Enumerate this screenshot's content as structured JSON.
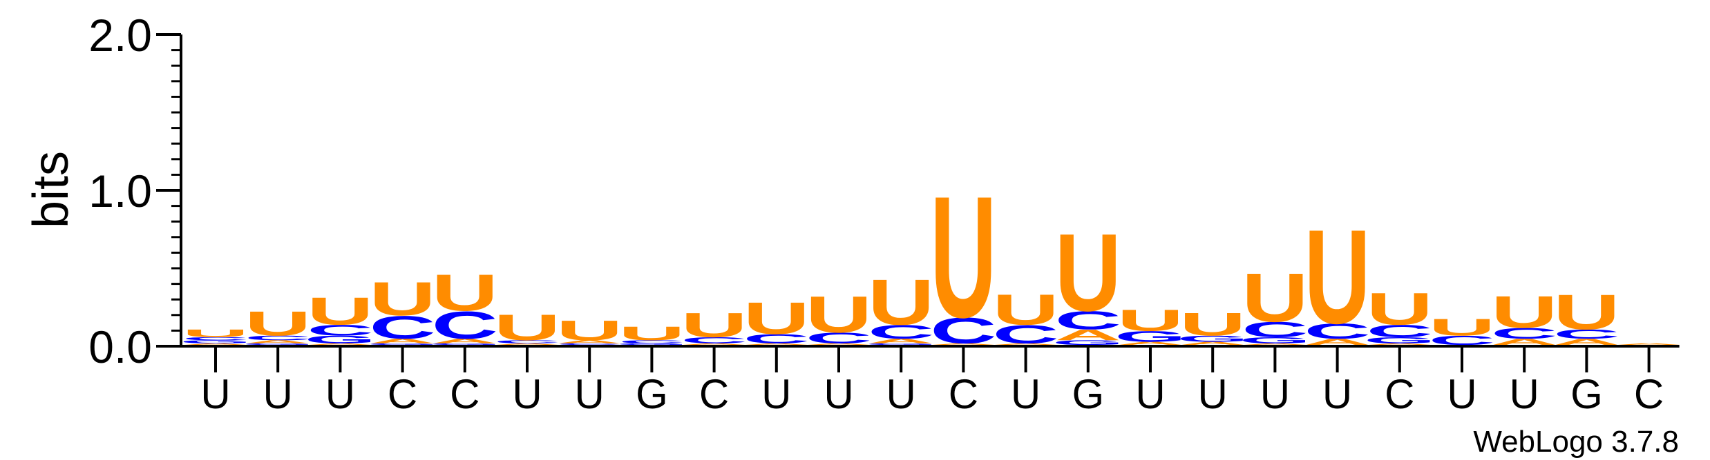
{
  "chart_data": {
    "type": "sequence_logo",
    "ylabel": "bits",
    "ylim": [
      0,
      2.0
    ],
    "yticks": [
      {
        "value": 0.0,
        "label": "0.0"
      },
      {
        "value": 1.0,
        "label": "1.0"
      },
      {
        "value": 2.0,
        "label": "2.0"
      }
    ],
    "xlabels": [
      "U",
      "U",
      "U",
      "C",
      "C",
      "U",
      "U",
      "G",
      "C",
      "U",
      "U",
      "U",
      "C",
      "U",
      "G",
      "U",
      "U",
      "U",
      "U",
      "C",
      "U",
      "U",
      "G",
      "C"
    ],
    "colors": {
      "U": "#ff8c00",
      "C": "#0000ff",
      "G": "#0000ff",
      "A": "#ff8c00"
    },
    "columns": [
      [
        {
          "b": "A",
          "h": 0.01
        },
        {
          "b": "G",
          "h": 0.02
        },
        {
          "b": "C",
          "h": 0.02
        },
        {
          "b": "U",
          "h": 0.05
        }
      ],
      [
        {
          "b": "G",
          "h": 0.01
        },
        {
          "b": "A",
          "h": 0.02
        },
        {
          "b": "C",
          "h": 0.03
        },
        {
          "b": "U",
          "h": 0.16
        }
      ],
      [
        {
          "b": "A",
          "h": 0.01
        },
        {
          "b": "G",
          "h": 0.05
        },
        {
          "b": "C",
          "h": 0.07
        },
        {
          "b": "U",
          "h": 0.18
        }
      ],
      [
        {
          "b": "G",
          "h": 0.01
        },
        {
          "b": "A",
          "h": 0.03
        },
        {
          "b": "C",
          "h": 0.15
        },
        {
          "b": "U",
          "h": 0.22
        }
      ],
      [
        {
          "b": "G",
          "h": 0.01
        },
        {
          "b": "A",
          "h": 0.03
        },
        {
          "b": "C",
          "h": 0.18
        },
        {
          "b": "U",
          "h": 0.24
        }
      ],
      [
        {
          "b": "A",
          "h": 0.01
        },
        {
          "b": "C",
          "h": 0.02
        },
        {
          "b": "U",
          "h": 0.17
        }
      ],
      [
        {
          "b": "C",
          "h": 0.01
        },
        {
          "b": "A",
          "h": 0.02
        },
        {
          "b": "U",
          "h": 0.13
        }
      ],
      [
        {
          "b": "G",
          "h": 0.01
        },
        {
          "b": "C",
          "h": 0.02
        },
        {
          "b": "U",
          "h": 0.09
        }
      ],
      [
        {
          "b": "A",
          "h": 0.01
        },
        {
          "b": "C",
          "h": 0.04
        },
        {
          "b": "U",
          "h": 0.16
        }
      ],
      [
        {
          "b": "A",
          "h": 0.01
        },
        {
          "b": "C",
          "h": 0.06
        },
        {
          "b": "U",
          "h": 0.21
        }
      ],
      [
        {
          "b": "A",
          "h": 0.01
        },
        {
          "b": "C",
          "h": 0.07
        },
        {
          "b": "U",
          "h": 0.24
        }
      ],
      [
        {
          "b": "G",
          "h": 0.01
        },
        {
          "b": "A",
          "h": 0.03
        },
        {
          "b": "C",
          "h": 0.09
        },
        {
          "b": "U",
          "h": 0.3
        }
      ],
      [
        {
          "b": "A",
          "h": 0.01
        },
        {
          "b": "C",
          "h": 0.17
        },
        {
          "b": "U",
          "h": 0.8
        }
      ],
      [
        {
          "b": "A",
          "h": 0.01
        },
        {
          "b": "C",
          "h": 0.12
        },
        {
          "b": "U",
          "h": 0.2
        }
      ],
      [
        {
          "b": "G",
          "h": 0.03
        },
        {
          "b": "A",
          "h": 0.07
        },
        {
          "b": "C",
          "h": 0.12
        },
        {
          "b": "U",
          "h": 0.51
        }
      ],
      [
        {
          "b": "A",
          "h": 0.02
        },
        {
          "b": "G",
          "h": 0.07
        },
        {
          "b": "U",
          "h": 0.14
        }
      ],
      [
        {
          "b": "A",
          "h": 0.02
        },
        {
          "b": "G",
          "h": 0.04
        },
        {
          "b": "U",
          "h": 0.15
        }
      ],
      [
        {
          "b": "A",
          "h": 0.01
        },
        {
          "b": "G",
          "h": 0.04
        },
        {
          "b": "C",
          "h": 0.1
        },
        {
          "b": "U",
          "h": 0.32
        }
      ],
      [
        {
          "b": "A",
          "h": 0.04
        },
        {
          "b": "C",
          "h": 0.1
        },
        {
          "b": "U",
          "h": 0.62
        }
      ],
      [
        {
          "b": "A",
          "h": 0.01
        },
        {
          "b": "G",
          "h": 0.04
        },
        {
          "b": "C",
          "h": 0.08
        },
        {
          "b": "U",
          "h": 0.21
        }
      ],
      [
        {
          "b": "C",
          "h": 0.06
        },
        {
          "b": "U",
          "h": 0.11
        }
      ],
      [
        {
          "b": "A",
          "h": 0.04
        },
        {
          "b": "C",
          "h": 0.07
        },
        {
          "b": "U",
          "h": 0.21
        }
      ],
      [
        {
          "b": "A",
          "h": 0.04
        },
        {
          "b": "C",
          "h": 0.06
        },
        {
          "b": "U",
          "h": 0.23
        }
      ],
      [
        {
          "b": "A",
          "h": 0.01
        }
      ]
    ]
  },
  "footer": {
    "credit": "WebLogo 3.7.8"
  }
}
